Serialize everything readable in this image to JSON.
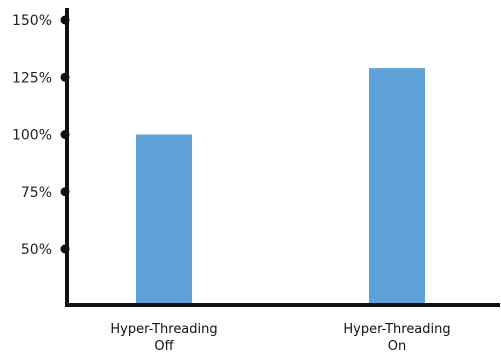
{
  "colors": {
    "bar": "#5FA2DA",
    "axis": "#111111",
    "text": "#222222"
  },
  "chart_data": {
    "type": "bar",
    "title": "",
    "xlabel": "",
    "ylabel": "",
    "ylim": [
      30,
      155
    ],
    "yticks": [
      50,
      75,
      100,
      125,
      150
    ],
    "ytick_labels": [
      "50%",
      "75%",
      "100%",
      "125%",
      "150%"
    ],
    "grid": false,
    "categories": [
      [
        "Hyper-Threading",
        "Off"
      ],
      [
        "Hyper-Threading",
        "On"
      ]
    ],
    "values": [
      100,
      129
    ]
  }
}
